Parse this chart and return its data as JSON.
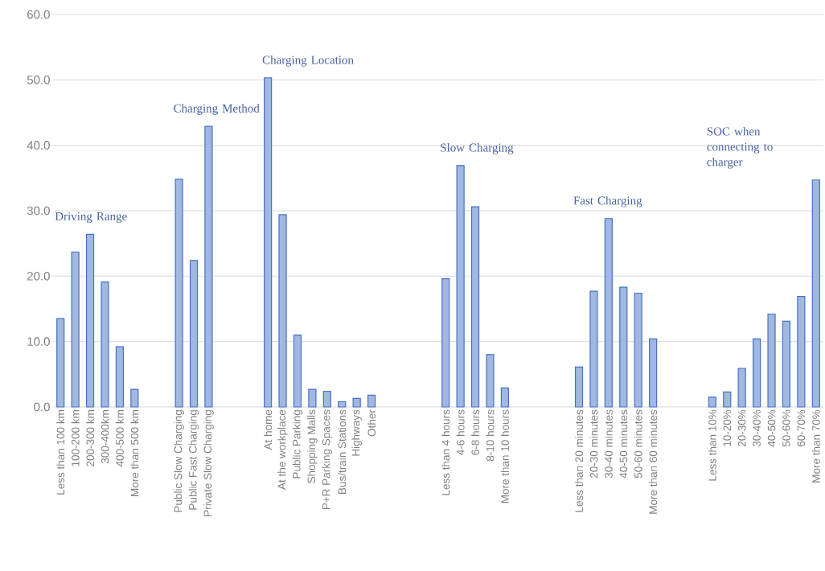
{
  "chart_data": {
    "type": "bar",
    "color": "#4472c4",
    "grid": "y",
    "categories": [
      "Less than 100 km",
      "100-200 km",
      "200-300 km",
      "300-400km",
      "400-500 km",
      "More than 500 km",
      null,
      null,
      "Public Slow Charging",
      "Public Fast Charging",
      "Private Slow Charging",
      null,
      null,
      null,
      "At home",
      "At the workplace",
      "Public Parking",
      "Shopping Malls",
      "P+R Parking Spaces",
      "Bus/train Stations",
      "Highways",
      "Other",
      null,
      null,
      null,
      null,
      "Less than 4 hours",
      "4-6 hours",
      "6-8 hours",
      "8-10 hours",
      "More than 10 hours",
      null,
      null,
      null,
      null,
      "Less than 20 minutes",
      "20-30 minutes",
      "30-40 minutes",
      "40-50 minutes",
      "50-60 minutes",
      "More than 60 minutes",
      null,
      null,
      null,
      "Less than 10%",
      "10-20%",
      "20-30%",
      "30-40%",
      "40-50%",
      "50-60%",
      "60-70%",
      "More than 70%"
    ],
    "values": [
      13.5,
      23.7,
      26.4,
      19.1,
      9.2,
      2.7,
      null,
      null,
      34.8,
      22.4,
      42.9,
      null,
      null,
      null,
      50.3,
      29.4,
      11.0,
      2.7,
      2.4,
      0.8,
      1.3,
      1.8,
      null,
      null,
      null,
      null,
      19.6,
      36.9,
      30.6,
      8.0,
      2.9,
      null,
      null,
      null,
      null,
      6.1,
      17.7,
      28.8,
      18.3,
      17.4,
      10.4,
      null,
      null,
      null,
      1.5,
      2.3,
      5.9,
      10.4,
      14.2,
      13.1,
      16.9,
      34.7
    ],
    "ylim": [
      0,
      60
    ],
    "yticks": [
      {
        "value": 0,
        "label": "0.0"
      },
      {
        "value": 10,
        "label": "10.0"
      },
      {
        "value": 20,
        "label": "20.0"
      },
      {
        "value": 30,
        "label": "30.0"
      },
      {
        "value": 40,
        "label": "40.0"
      },
      {
        "value": 50,
        "label": "50.0"
      },
      {
        "value": 60,
        "label": "60.0"
      }
    ],
    "annotations": [
      "Driving Range",
      "Charging Method",
      "Charging Location",
      "Slow Charging",
      "Fast Charging",
      "SOC when connecting to charger"
    ]
  }
}
